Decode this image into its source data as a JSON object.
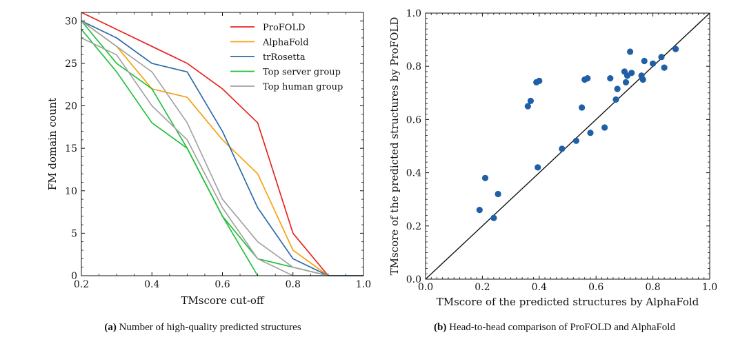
{
  "chart_data": [
    {
      "type": "line",
      "id": "a",
      "title": "",
      "xlabel": "TMscore cut-off",
      "ylabel": "FM domain count",
      "xlim": [
        0.2,
        1.0
      ],
      "ylim": [
        0,
        31
      ],
      "xticks": [
        "0.2",
        "0.4",
        "0.6",
        "0.8",
        "1.0"
      ],
      "yticks": [
        "0",
        "5",
        "10",
        "15",
        "20",
        "25",
        "30"
      ],
      "legend_position": "top-right",
      "series": [
        {
          "name": "ProFOLD",
          "color": "#e8231e",
          "x": [
            0.2,
            0.3,
            0.4,
            0.5,
            0.6,
            0.7,
            0.8,
            0.9,
            1.0
          ],
          "y": [
            31,
            29,
            27,
            25,
            22,
            18,
            5,
            0,
            0
          ]
        },
        {
          "name": "AlphaFold",
          "color": "#f5a20f",
          "x": [
            0.2,
            0.3,
            0.4,
            0.5,
            0.6,
            0.7,
            0.8,
            0.9,
            1.0
          ],
          "y": [
            30,
            27,
            22,
            21,
            16,
            12,
            3,
            0,
            0
          ]
        },
        {
          "name": "trRosetta",
          "color": "#2b6aa8",
          "x": [
            0.2,
            0.3,
            0.4,
            0.5,
            0.6,
            0.7,
            0.8,
            0.9,
            1.0
          ],
          "y": [
            30,
            28,
            25,
            24,
            17,
            8,
            2,
            0,
            0
          ]
        },
        {
          "name": "Top server group",
          "color": "#22c03c",
          "x": [
            0.2,
            0.3,
            0.4,
            0.5,
            0.6,
            0.7
          ],
          "y": [
            29,
            24,
            18,
            15,
            7,
            0
          ]
        },
        {
          "name": "Top server group",
          "color": "#22c03c",
          "x": [
            0.2,
            0.3,
            0.4,
            0.5,
            0.6,
            0.7,
            0.8,
            0.9
          ],
          "y": [
            30,
            25,
            22,
            15,
            7,
            2,
            1,
            0
          ]
        },
        {
          "name": "Top human group",
          "color": "#a3a3a3",
          "x": [
            0.2,
            0.3,
            0.4,
            0.5,
            0.6,
            0.7,
            0.8,
            0.9
          ],
          "y": [
            28,
            26,
            20,
            16,
            8,
            2,
            0,
            0
          ]
        },
        {
          "name": "Top human group",
          "color": "#a3a3a3",
          "x": [
            0.2,
            0.3,
            0.4,
            0.5,
            0.6,
            0.7,
            0.8,
            0.9
          ],
          "y": [
            30,
            27,
            24,
            18,
            9,
            4,
            1,
            0
          ]
        }
      ],
      "legend": [
        {
          "name": "ProFOLD",
          "color": "#e8231e"
        },
        {
          "name": "AlphaFold",
          "color": "#f5a20f"
        },
        {
          "name": "trRosetta",
          "color": "#2b6aa8"
        },
        {
          "name": "Top server group",
          "color": "#22c03c"
        },
        {
          "name": "Top human group",
          "color": "#a3a3a3"
        }
      ]
    },
    {
      "type": "scatter",
      "id": "b",
      "title": "",
      "xlabel": "TMscore of the predicted structures by AlphaFold",
      "ylabel": "TMscore of the predicted structures by ProFOLD",
      "xlim": [
        0.0,
        1.0
      ],
      "ylim": [
        0.0,
        1.0
      ],
      "xticks": [
        "0.0",
        "0.2",
        "0.4",
        "0.6",
        "0.8",
        "1.0"
      ],
      "yticks": [
        "0.0",
        "0.2",
        "0.4",
        "0.6",
        "0.8",
        "1.0"
      ],
      "point_color": "#1f5fa6",
      "diagonal": true,
      "points": [
        [
          0.19,
          0.26
        ],
        [
          0.21,
          0.38
        ],
        [
          0.24,
          0.23
        ],
        [
          0.255,
          0.32
        ],
        [
          0.36,
          0.65
        ],
        [
          0.37,
          0.67
        ],
        [
          0.39,
          0.74
        ],
        [
          0.4,
          0.745
        ],
        [
          0.395,
          0.42
        ],
        [
          0.48,
          0.49
        ],
        [
          0.53,
          0.52
        ],
        [
          0.55,
          0.645
        ],
        [
          0.56,
          0.75
        ],
        [
          0.57,
          0.755
        ],
        [
          0.58,
          0.55
        ],
        [
          0.63,
          0.57
        ],
        [
          0.65,
          0.755
        ],
        [
          0.67,
          0.675
        ],
        [
          0.675,
          0.715
        ],
        [
          0.7,
          0.78
        ],
        [
          0.705,
          0.74
        ],
        [
          0.71,
          0.765
        ],
        [
          0.72,
          0.855
        ],
        [
          0.725,
          0.775
        ],
        [
          0.76,
          0.765
        ],
        [
          0.765,
          0.75
        ],
        [
          0.77,
          0.82
        ],
        [
          0.8,
          0.81
        ],
        [
          0.83,
          0.835
        ],
        [
          0.84,
          0.795
        ],
        [
          0.88,
          0.865
        ]
      ]
    }
  ],
  "captions": {
    "a": {
      "tag": "(a)",
      "text": "Number of high-quality predicted structures"
    },
    "b": {
      "tag": "(b)",
      "text": "Head-to-head comparison of ProFOLD and AlphaFold"
    }
  }
}
